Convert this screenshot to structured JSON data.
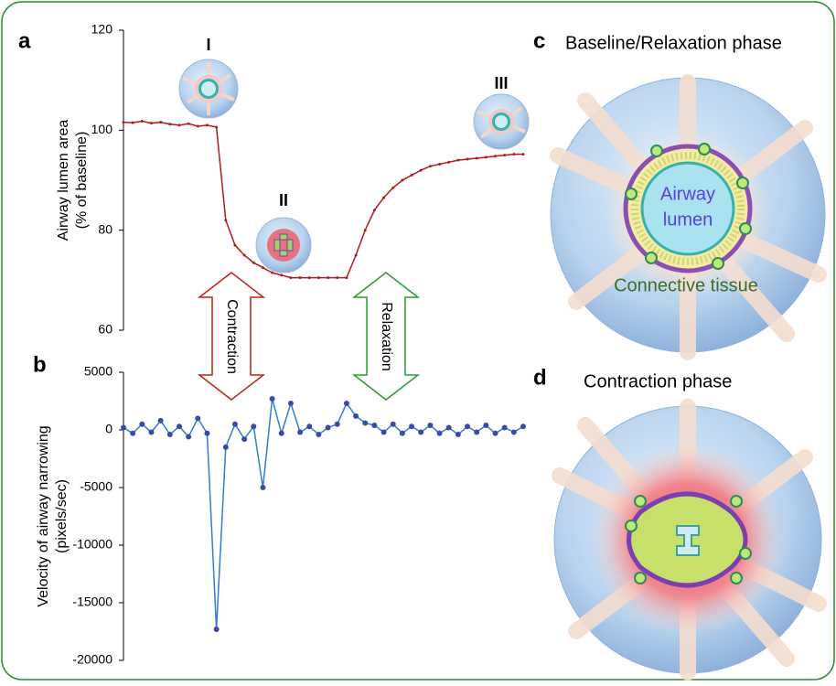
{
  "chart_data": [
    {
      "type": "line",
      "y_label": [
        "Airway lumen area",
        "(% of baseline)"
      ],
      "ylim": [
        60,
        120
      ],
      "yticks": [
        60,
        80,
        100,
        120
      ],
      "xlim": [
        0,
        43
      ],
      "x": [
        0,
        1,
        2,
        3,
        4,
        5,
        6,
        7,
        8,
        9,
        10,
        11,
        12,
        13,
        14,
        15,
        16,
        17,
        18,
        19,
        20,
        21,
        22,
        23,
        24,
        25,
        26,
        27,
        28,
        29,
        30,
        31,
        32,
        33,
        34,
        35,
        36,
        37,
        38,
        39,
        40,
        41,
        42,
        43
      ],
      "series": [
        {
          "color": "#b31b1b",
          "values": [
            101.6,
            101.5,
            101.8,
            101.4,
            101.6,
            101.2,
            101.0,
            101.3,
            100.8,
            101.0,
            100.6,
            82,
            77,
            75,
            73.5,
            72.5,
            71.5,
            71,
            70.5,
            70.5,
            70.5,
            70.5,
            70.5,
            70.5,
            70.5,
            75,
            80,
            84,
            86.5,
            88.5,
            90,
            91,
            92,
            92.8,
            93.2,
            93.6,
            94,
            94.2,
            94.4,
            94.6,
            94.8,
            95,
            95.2,
            95.2
          ]
        }
      ]
    },
    {
      "type": "line",
      "y_label": [
        "Velocity of airway narrowing",
        "(pixels/sec)"
      ],
      "ylim": [
        -20000,
        5000
      ],
      "yticks": [
        -20000,
        -15000,
        -10000,
        -5000,
        0,
        5000
      ],
      "xlim": [
        0,
        43
      ],
      "x": [
        0,
        1,
        2,
        3,
        4,
        5,
        6,
        7,
        8,
        9,
        10,
        11,
        12,
        13,
        14,
        15,
        16,
        17,
        18,
        19,
        20,
        21,
        22,
        23,
        24,
        25,
        26,
        27,
        28,
        29,
        30,
        31,
        32,
        33,
        34,
        35,
        36,
        37,
        38,
        39,
        40,
        41,
        42,
        43
      ],
      "series": [
        {
          "color": "#2f7fd0",
          "marker_color": "#3b4aa8",
          "values": [
            200,
            -300,
            500,
            -200,
            800,
            -400,
            300,
            -600,
            1000,
            -300,
            -17300,
            -1500,
            500,
            -800,
            300,
            -5000,
            2700,
            -300,
            2300,
            -200,
            300,
            -400,
            200,
            500,
            2300,
            1200,
            600,
            400,
            -200,
            500,
            -300,
            300,
            -200,
            400,
            -300,
            200,
            -400,
            300,
            -200,
            400,
            -300,
            200,
            -200,
            300
          ]
        }
      ]
    }
  ],
  "figure": {
    "panel_labels": [
      "a",
      "b",
      "c",
      "d"
    ],
    "stage_labels": [
      "I",
      "II",
      "III"
    ],
    "arrows": [
      "Contraction",
      "Relaxation"
    ],
    "panel_c_title": "Baseline/Relaxation phase",
    "panel_d_title": "Contraction phase",
    "lumen_label": [
      "Airway",
      "lumen"
    ],
    "tissue_label": "Connective tissue"
  }
}
